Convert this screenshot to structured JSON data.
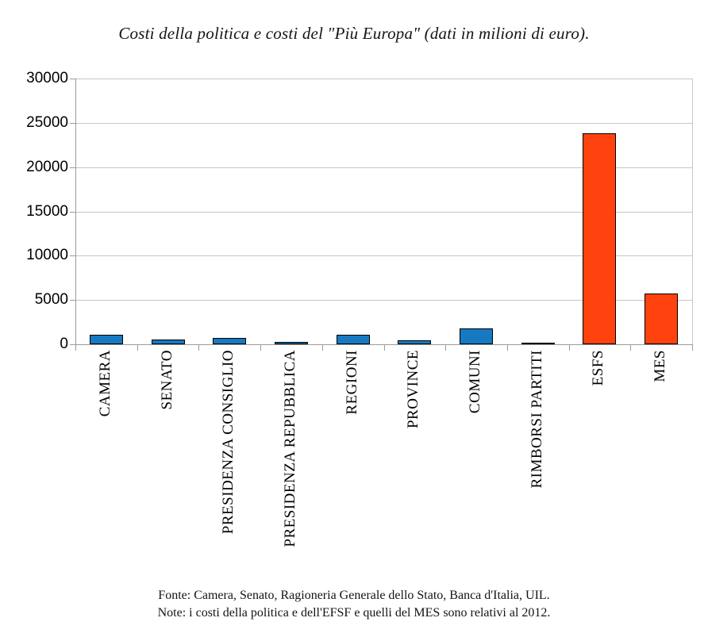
{
  "title": "Costi della politica e costi del \"Più Europa\" (dati in milioni di euro).",
  "footer": {
    "fonte": "Fonte: Camera, Senato, Ragioneria Generale dello Stato, Banca d'Italia, UIL.",
    "note": "Note: i costi della politica e dell'EFSF e quelli del MES sono relativi al 2012."
  },
  "chart_data": {
    "type": "bar",
    "title": "Costi della politica e costi del \"Più Europa\" (dati in milioni di euro).",
    "categories": [
      "CAMERA",
      "SENATO",
      "PRESIDENZA CONSIGLIO",
      "PRESIDENZA REPUBBLICA",
      "REGIONI",
      "PROVINCE",
      "COMUNI",
      "RIMBORSI PARTITI",
      "ESFS",
      "MES"
    ],
    "values": [
      1050,
      550,
      700,
      250,
      1050,
      450,
      1750,
      200,
      23850,
      5750
    ],
    "bar_colors": [
      "#1779c2",
      "#1779c2",
      "#1779c2",
      "#1779c2",
      "#1779c2",
      "#1779c2",
      "#1779c2",
      "#1779c2",
      "#ff420e",
      "#ff420e"
    ],
    "color_politica": "#1779c2",
    "color_piu_europa": "#ff420e",
    "xlabel": "",
    "ylabel": "",
    "ylim": [
      0,
      30000
    ],
    "yticks": [
      0,
      5000,
      10000,
      15000,
      20000,
      25000,
      30000
    ],
    "grid": "horizontal",
    "legend": "none"
  }
}
